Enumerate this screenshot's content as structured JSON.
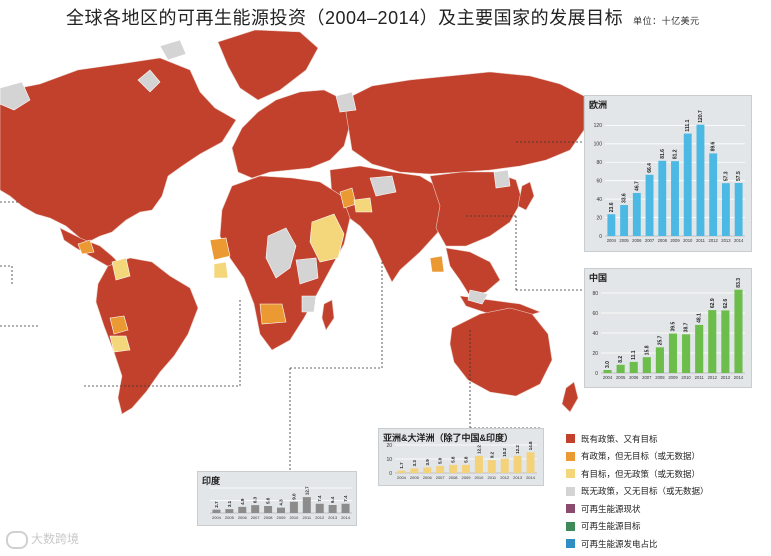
{
  "header": {
    "title": "全球各地区的可再生能源投资（2004–2014）及主要国家的发展目标",
    "unit": "单位：十亿美元"
  },
  "colors": {
    "policy_and_target": "#c2412d",
    "policy_no_target": "#eb9a33",
    "target_no_policy": "#f5d77b",
    "neither": "#d4d4d4",
    "status": "#8b4b6e",
    "target": "#3f8a5a",
    "share": "#2f8fc4",
    "europe_bar": "#4cb9e4",
    "china_bar": "#6dbd4c",
    "asia_bar": "#f3d27a",
    "india_bar": "#8c8c8c"
  },
  "legend": {
    "items": [
      {
        "label": "既有政策、又有目标",
        "color": "#c2412d"
      },
      {
        "label": "有政策，但无目标（或无数据）",
        "color": "#eb9a33"
      },
      {
        "label": "有目标，但无政策（或无数据）",
        "color": "#f5d77b"
      },
      {
        "label": "既无政策，又无目标（或无数据）",
        "color": "#d4d4d4"
      },
      {
        "label": "可再生能源现状",
        "color": "#8b4b6e"
      },
      {
        "label": "可再生能源目标",
        "color": "#3f8a5a"
      },
      {
        "label": "可再生能源发电占比",
        "color": "#2f8fc4"
      }
    ]
  },
  "watermark": {
    "text": "大数跨境"
  },
  "chart_data": [
    {
      "type": "bar",
      "title": "欧洲",
      "categories": [
        "2004",
        "2005",
        "2006",
        "2007",
        "2008",
        "2009",
        "2010",
        "2011",
        "2012",
        "2013",
        "2014"
      ],
      "values": [
        23.6,
        33.6,
        46.7,
        66.4,
        81.6,
        81.2,
        111.1,
        120.7,
        89.6,
        57.3,
        57.5
      ],
      "value_labels": [
        "23.6",
        "33.6",
        "46.7",
        "66.4",
        "81.6",
        "81.2",
        "111.1",
        "120.7",
        "89.6",
        "57.3",
        "57.5"
      ],
      "yticks": [
        0,
        20,
        40,
        60,
        80,
        100,
        120
      ],
      "ylim": [
        0,
        128
      ],
      "color": "#4cb9e4",
      "grid": true
    },
    {
      "type": "bar",
      "title": "中国",
      "categories": [
        "2004",
        "2005",
        "2006",
        "2007",
        "2008",
        "2009",
        "2010",
        "2011",
        "2012",
        "2013",
        "2014"
      ],
      "values": [
        3.0,
        8.2,
        11.1,
        15.8,
        25.7,
        39.5,
        38.7,
        48.1,
        62.9,
        62.6,
        83.3
      ],
      "value_labels": [
        "3.0",
        "8.2",
        "11.1",
        "15.8",
        "25.7",
        "39.5",
        "38.7",
        "48.1",
        "62.9",
        "62.6",
        "83.3"
      ],
      "yticks": [
        0,
        20,
        40,
        60,
        80
      ],
      "ylim": [
        0,
        88
      ],
      "color": "#6dbd4c",
      "grid": true
    },
    {
      "type": "bar",
      "title": "亚洲&大洋洲（除了中国&印度）",
      "categories": [
        "2004",
        "2005",
        "2006",
        "2007",
        "2008",
        "2009",
        "2010",
        "2011",
        "2012",
        "2013",
        "2014"
      ],
      "values": [
        1.7,
        3.3,
        3.9,
        5.0,
        5.8,
        5.8,
        12.2,
        9.2,
        10.2,
        12.2,
        14.8
      ],
      "value_labels": [
        "1.7",
        "3.3",
        "3.9",
        "5.0",
        "5.8",
        "5.8",
        "12.2",
        "9.2",
        "10.2",
        "12.2",
        "14.8"
      ],
      "yticks": [
        0,
        10,
        20
      ],
      "ylim": [
        0,
        20
      ],
      "color": "#f3d27a",
      "grid": true
    },
    {
      "type": "bar",
      "title": "印度",
      "categories": [
        "2004",
        "2005",
        "2006",
        "2007",
        "2008",
        "2009",
        "2010",
        "2011",
        "2012",
        "2013",
        "2014"
      ],
      "values": [
        2.7,
        3.1,
        4.9,
        6.3,
        5.6,
        4.3,
        9.0,
        12.7,
        7.4,
        6.4,
        7.4
      ],
      "value_labels": [
        "2.7",
        "3.1",
        "4.9",
        "6.3",
        "5.6",
        "4.3",
        "9.0",
        "12.7",
        "7.4",
        "6.4",
        "7.4"
      ],
      "yticks": [
        0,
        10,
        20
      ],
      "ylim": [
        0,
        20
      ],
      "color": "#8c8c8c",
      "grid": true
    }
  ]
}
